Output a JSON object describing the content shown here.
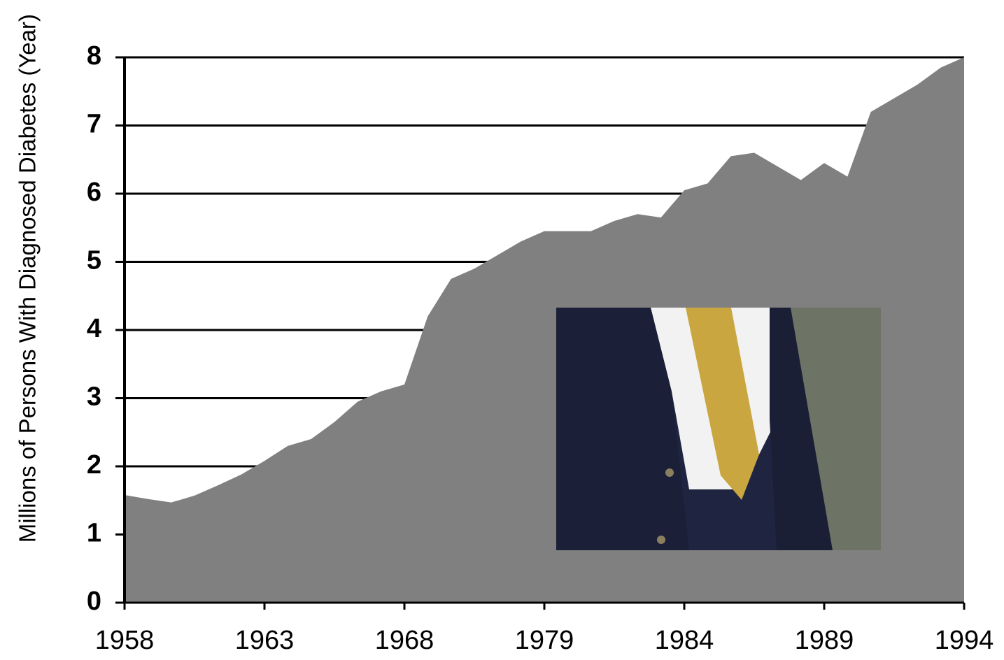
{
  "chart_data": {
    "type": "area",
    "y_label": "Millions of Persons With Diagnosed Diabetes (Year)",
    "categories": [
      "1958",
      null,
      null,
      null,
      null,
      null,
      "1963",
      null,
      null,
      null,
      null,
      null,
      "1968",
      null,
      null,
      null,
      null,
      null,
      "1979",
      null,
      null,
      null,
      null,
      null,
      "1984",
      null,
      null,
      null,
      null,
      null,
      "1989",
      null,
      null,
      null,
      null,
      null,
      "1994"
    ],
    "values": [
      1.58,
      1.52,
      1.47,
      1.57,
      1.72,
      1.88,
      2.08,
      2.3,
      2.4,
      2.65,
      2.95,
      3.1,
      3.2,
      4.2,
      4.75,
      4.9,
      5.1,
      5.3,
      5.45,
      5.45,
      5.45,
      5.6,
      5.7,
      5.65,
      6.05,
      6.15,
      6.55,
      6.6,
      6.4,
      6.2,
      6.45,
      6.25,
      7.2,
      7.4,
      7.6,
      7.85,
      8.0
    ],
    "color": "#808080",
    "ylim": [
      0,
      8
    ],
    "yticks": [
      0,
      1,
      2,
      3,
      4,
      5,
      6,
      7,
      8
    ],
    "grid": true
  }
}
